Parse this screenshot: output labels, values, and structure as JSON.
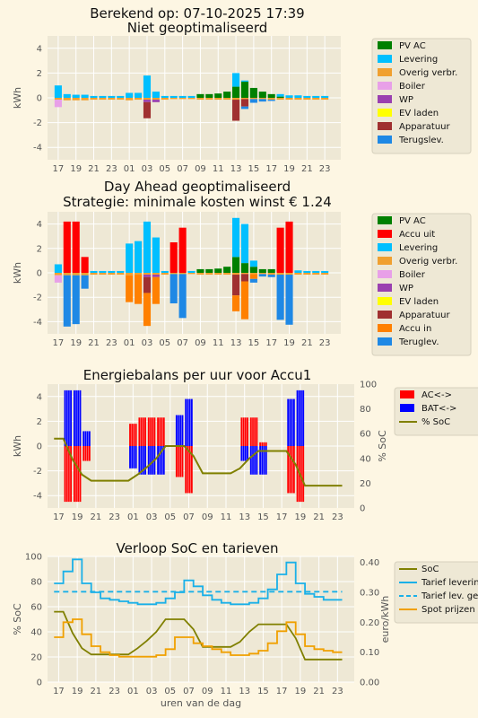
{
  "main_title": "Berekend op: 07-10-2025 17:39",
  "chart_data": [
    {
      "type": "bar",
      "title": "Niet geoptimaliseerd",
      "ylabel": "kWh",
      "ylim": [
        -5,
        5
      ],
      "yticks": [
        -4,
        -2,
        0,
        2,
        4
      ],
      "grid": true,
      "legend_position": "right",
      "x_hours": [
        17,
        18,
        19,
        20,
        21,
        22,
        23,
        0,
        1,
        2,
        3,
        4,
        5,
        6,
        7,
        8,
        9,
        10,
        11,
        12,
        13,
        14,
        15,
        16,
        17,
        18,
        19,
        20,
        21,
        22,
        23
      ],
      "xticks": [
        "17",
        "19",
        "21",
        "23",
        "01",
        "03",
        "05",
        "07",
        "09",
        "11",
        "13",
        "15",
        "17",
        "19",
        "21",
        "23"
      ],
      "series": [
        {
          "name": "PV AC",
          "color": "#008000",
          "stack": "pos",
          "values": [
            0,
            0,
            0,
            0,
            0,
            0,
            0,
            0,
            0,
            0,
            0,
            0,
            0,
            0,
            0,
            0,
            0.3,
            0.3,
            0.35,
            0.5,
            0.9,
            1.3,
            0.8,
            0.5,
            0.3,
            0.1,
            0,
            0,
            0,
            0,
            0
          ]
        },
        {
          "name": "Levering",
          "color": "#00bfff",
          "stack": "pos",
          "values": [
            1.0,
            0.3,
            0.25,
            0.25,
            0.15,
            0.15,
            0.15,
            0.15,
            0.4,
            0.4,
            1.8,
            0.5,
            0.15,
            0.15,
            0.15,
            0.15,
            0,
            0,
            0,
            0,
            1.1,
            0.1,
            0,
            0,
            0,
            0.2,
            0.2,
            0.2,
            0.15,
            0.15,
            0.15
          ]
        },
        {
          "name": "Overig verbr.",
          "color": "#f0a030",
          "stack": "neg",
          "values": [
            -0.15,
            -0.2,
            -0.2,
            -0.2,
            -0.15,
            -0.15,
            -0.15,
            -0.15,
            -0.2,
            -0.15,
            -0.15,
            -0.15,
            -0.15,
            -0.1,
            -0.1,
            -0.1,
            -0.15,
            -0.15,
            -0.15,
            -0.15,
            -0.15,
            -0.1,
            -0.1,
            -0.1,
            -0.15,
            -0.15,
            -0.15,
            -0.15,
            -0.15,
            -0.15,
            -0.15
          ]
        },
        {
          "name": "Boiler",
          "color": "#e8a0e8",
          "stack": "neg",
          "values": [
            -0.6,
            0,
            0,
            0,
            0,
            0,
            0,
            0,
            0,
            0,
            0,
            0,
            0,
            0,
            0,
            0,
            0,
            0,
            0,
            0,
            0,
            0,
            0,
            0,
            0,
            0,
            0,
            0,
            0,
            0,
            0
          ]
        },
        {
          "name": "WP",
          "color": "#9a40b0",
          "stack": "neg",
          "values": [
            0,
            0,
            0,
            0,
            0,
            0,
            0,
            0,
            0,
            0,
            -0.2,
            -0.2,
            0,
            0,
            0,
            0,
            0,
            0,
            0,
            0,
            0,
            0,
            0,
            0,
            0,
            0,
            0,
            0,
            0,
            0,
            0
          ]
        },
        {
          "name": "EV laden",
          "color": "#ffff00",
          "stack": "neg",
          "values": [
            0,
            0,
            0,
            0,
            0,
            0,
            0,
            0,
            0,
            0,
            0,
            0,
            0,
            0,
            0,
            0,
            0,
            0,
            0,
            0,
            0,
            0,
            0,
            0,
            0,
            0,
            0,
            0,
            0,
            0,
            0
          ]
        },
        {
          "name": "Apparatuur",
          "color": "#a03030",
          "stack": "neg",
          "values": [
            0,
            0,
            0,
            0,
            0,
            0,
            0,
            0,
            0,
            0,
            -1.3,
            0,
            0,
            0,
            0,
            0,
            0,
            0,
            0,
            0,
            -1.7,
            -0.6,
            0,
            0,
            0,
            0,
            0,
            0,
            0,
            0,
            0
          ]
        },
        {
          "name": "Terugslev.",
          "color": "#1e88e5",
          "stack": "neg",
          "values": [
            0,
            0,
            0,
            0,
            0,
            0,
            0,
            0,
            0,
            0,
            0,
            0,
            0,
            0,
            0,
            0,
            0,
            0,
            0,
            0,
            0,
            -0.2,
            -0.3,
            -0.2,
            -0.1,
            0,
            0,
            0,
            0,
            0,
            0
          ]
        }
      ]
    },
    {
      "type": "bar",
      "title_lines": [
        "Day Ahead geoptimaliseerd",
        "Strategie: minimale kosten winst € 1.24"
      ],
      "ylabel": "kWh",
      "ylim": [
        -5,
        5
      ],
      "yticks": [
        -4,
        -2,
        0,
        2,
        4
      ],
      "grid": true,
      "legend_position": "right",
      "series": [
        {
          "name": "PV AC",
          "color": "#008000",
          "stack": "pos",
          "values": [
            0,
            0,
            0,
            0,
            0,
            0,
            0,
            0,
            0,
            0,
            0,
            0,
            0,
            0,
            0,
            0,
            0.3,
            0.3,
            0.35,
            0.5,
            1.3,
            0.8,
            0.5,
            0.3,
            0.3,
            0,
            0,
            0,
            0,
            0,
            0
          ]
        },
        {
          "name": "Accu uit",
          "color": "#ff0000",
          "stack": "pos",
          "values": [
            0,
            4.2,
            4.2,
            1.3,
            0,
            0,
            0,
            0,
            0,
            0,
            0,
            0,
            0,
            2.5,
            3.7,
            0,
            0,
            0,
            0,
            0,
            0,
            0,
            0,
            0,
            0,
            3.7,
            4.2,
            0,
            0,
            0,
            0
          ]
        },
        {
          "name": "Levering",
          "color": "#00bfff",
          "stack": "pos",
          "values": [
            0.7,
            0,
            0,
            0,
            0.15,
            0.15,
            0.15,
            0.15,
            2.4,
            2.6,
            4.2,
            2.9,
            0.15,
            0,
            0,
            0.15,
            0,
            0,
            0,
            0,
            3.2,
            3.2,
            0.5,
            0,
            0,
            0,
            0,
            0.2,
            0.15,
            0.15,
            0.15
          ]
        },
        {
          "name": "Overig verbr.",
          "color": "#f0a030",
          "stack": "neg",
          "values": [
            -0.2,
            -0.2,
            -0.2,
            -0.2,
            -0.15,
            -0.15,
            -0.15,
            -0.15,
            -0.2,
            -0.15,
            -0.15,
            -0.15,
            -0.15,
            -0.1,
            -0.1,
            -0.1,
            -0.15,
            -0.15,
            -0.15,
            -0.15,
            -0.15,
            -0.1,
            -0.1,
            -0.1,
            -0.15,
            -0.15,
            -0.15,
            -0.15,
            -0.15,
            -0.15,
            -0.15
          ]
        },
        {
          "name": "Boiler",
          "color": "#e8a0e8",
          "stack": "neg",
          "values": [
            -0.6,
            0,
            0,
            0,
            0,
            0,
            0,
            0,
            0,
            0,
            0,
            0,
            0,
            0,
            0,
            0,
            0,
            0,
            0,
            0,
            0,
            0,
            0,
            0,
            0,
            0,
            0,
            0,
            0,
            0,
            0
          ]
        },
        {
          "name": "WP",
          "color": "#9a40b0",
          "stack": "neg",
          "values": [
            0,
            0,
            0,
            0,
            0,
            0,
            0,
            0,
            0,
            0,
            -0.2,
            -0.2,
            0,
            0,
            0,
            0,
            0,
            0,
            0,
            0,
            0,
            0,
            0,
            0,
            0,
            0,
            0,
            0,
            0,
            0,
            0
          ]
        },
        {
          "name": "EV laden",
          "color": "#ffff00",
          "stack": "neg",
          "values": [
            0,
            0,
            0,
            0,
            0,
            0,
            0,
            0,
            0,
            0,
            0,
            0,
            0,
            0,
            0,
            0,
            0,
            0,
            0,
            0,
            0,
            0,
            0,
            0,
            0,
            0,
            0,
            0,
            0,
            0,
            0
          ]
        },
        {
          "name": "Apparatuur",
          "color": "#a03030",
          "stack": "neg",
          "values": [
            0,
            0,
            0,
            0,
            0,
            0,
            0,
            0,
            0,
            0,
            -1.3,
            0,
            0,
            0,
            0,
            0,
            0,
            0,
            0,
            0,
            -1.7,
            -0.6,
            0,
            0,
            0,
            0,
            0,
            0,
            0,
            0,
            0
          ]
        },
        {
          "name": "Accu in",
          "color": "#ff8000",
          "stack": "neg",
          "values": [
            0,
            0,
            0,
            0,
            0,
            0,
            0,
            0,
            -2.2,
            -2.4,
            -2.7,
            -2.2,
            0,
            0,
            0,
            0,
            0,
            0,
            0,
            0,
            -1.3,
            -3.1,
            -0.4,
            0,
            0,
            0,
            0,
            0,
            0,
            0,
            0
          ]
        },
        {
          "name": "Teruglev.",
          "color": "#1e88e5",
          "stack": "neg",
          "values": [
            0,
            -4.2,
            -4.0,
            -1.1,
            0,
            0,
            0,
            0,
            0,
            0,
            0,
            0,
            0,
            -2.4,
            -3.6,
            0,
            0,
            0,
            0,
            0,
            0,
            0,
            -0.3,
            -0.2,
            -0.2,
            -3.7,
            -4.1,
            0,
            0,
            0,
            0
          ]
        }
      ]
    },
    {
      "type": "bar+line",
      "title": "Energiebalans per uur voor Accu1",
      "ylabel": "kWh",
      "y2label": "% SoC",
      "ylim": [
        -5,
        5
      ],
      "yticks": [
        -4,
        -2,
        0,
        2,
        4
      ],
      "y2lim": [
        0,
        100
      ],
      "y2ticks": [
        0,
        20,
        40,
        60,
        80,
        100
      ],
      "grid": true,
      "legend_position": "right",
      "series": [
        {
          "name": "AC<->",
          "color": "#ff0000",
          "values": [
            0,
            -4.5,
            -4.5,
            -1.2,
            0,
            0,
            0,
            0,
            1.8,
            2.3,
            2.3,
            2.3,
            0,
            -2.5,
            -3.8,
            0,
            0,
            0,
            0,
            0,
            2.3,
            2.3,
            0.3,
            0,
            0,
            -3.8,
            -4.5,
            0,
            0,
            0,
            0
          ]
        },
        {
          "name": "BAT<->",
          "color": "#0000ff",
          "values": [
            0,
            4.5,
            4.5,
            1.2,
            0,
            0,
            0,
            0,
            -1.8,
            -2.3,
            -2.3,
            -2.3,
            0,
            2.5,
            3.8,
            0,
            0,
            0,
            0,
            0,
            -1.2,
            -2.3,
            -2.3,
            0,
            0,
            3.8,
            4.5,
            0,
            0,
            0,
            0
          ]
        },
        {
          "name": "% SoC",
          "color": "#808000",
          "type": "line",
          "values": [
            56,
            56,
            39,
            27,
            22,
            22,
            22,
            22,
            22,
            27,
            33,
            40,
            50,
            50,
            50,
            42,
            28,
            28,
            28,
            28,
            32,
            40,
            46,
            46,
            46,
            46,
            35,
            18,
            18,
            18,
            18,
            18
          ]
        }
      ]
    },
    {
      "type": "line",
      "title": "Verloop SoC en tarieven",
      "xlabel": "uren van de dag",
      "ylabel": "% SoC",
      "y2label": "euro/kWh",
      "ylim": [
        0,
        100
      ],
      "yticks": [
        0,
        20,
        40,
        60,
        80,
        100
      ],
      "y2lim": [
        0,
        0.42
      ],
      "y2ticks": [
        "0.00",
        "0.10",
        "0.20",
        "0.30",
        "0.40"
      ],
      "grid": true,
      "legend_position": "right",
      "series": [
        {
          "name": "SoC",
          "color": "#808000",
          "axis": "left",
          "values": [
            56,
            56,
            39,
            27,
            22,
            22,
            22,
            22,
            22,
            27,
            33,
            40,
            50,
            50,
            50,
            42,
            28,
            28,
            28,
            28,
            32,
            40,
            46,
            46,
            46,
            46,
            35,
            18,
            18,
            18,
            18,
            18
          ]
        },
        {
          "name": "Tarief levering",
          "color": "#1ab0e8",
          "axis": "right",
          "values": [
            0.33,
            0.37,
            0.41,
            0.33,
            0.3,
            0.28,
            0.275,
            0.27,
            0.265,
            0.26,
            0.26,
            0.265,
            0.28,
            0.3,
            0.34,
            0.32,
            0.29,
            0.275,
            0.265,
            0.26,
            0.26,
            0.265,
            0.28,
            0.31,
            0.36,
            0.4,
            0.33,
            0.295,
            0.285,
            0.275,
            0.275
          ]
        },
        {
          "name": "Tarief lev. gemid.",
          "color": "#1ab0e8",
          "axis": "right",
          "dashed": true,
          "values": [
            0.302,
            0.302
          ]
        },
        {
          "name": "Spot prijzen",
          "color": "#f0a000",
          "axis": "right",
          "values": [
            0.15,
            0.2,
            0.21,
            0.16,
            0.12,
            0.1,
            0.09,
            0.085,
            0.085,
            0.085,
            0.085,
            0.09,
            0.11,
            0.15,
            0.15,
            0.13,
            0.12,
            0.11,
            0.1,
            0.09,
            0.09,
            0.095,
            0.105,
            0.13,
            0.17,
            0.2,
            0.16,
            0.12,
            0.11,
            0.105,
            0.1
          ]
        }
      ]
    }
  ]
}
